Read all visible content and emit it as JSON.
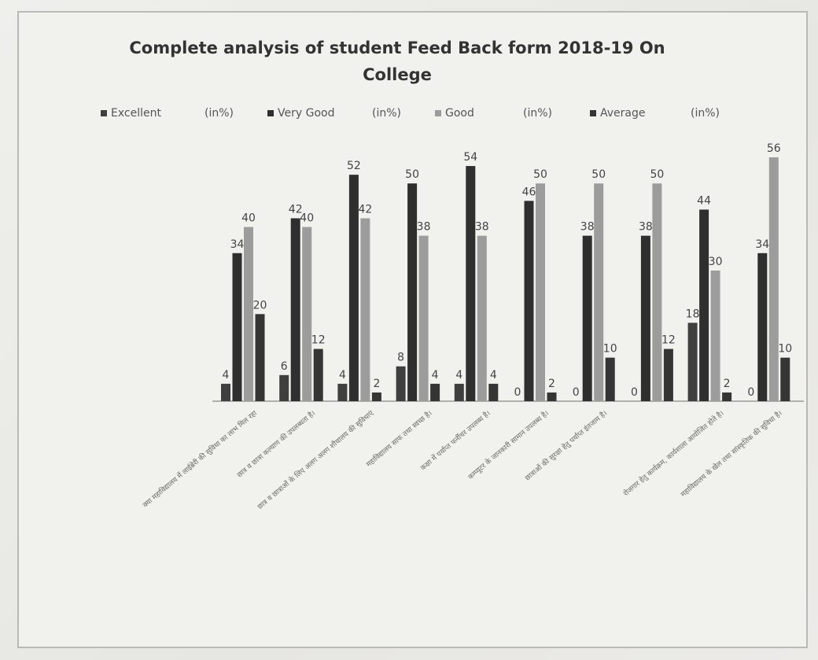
{
  "chart_data": {
    "type": "bar",
    "title": "Complete analysis of student Feed Back form 2018-19 On College",
    "title_lines": [
      "Complete analysis of student Feed Back form 2018-19 On",
      "College"
    ],
    "legend_position": "top",
    "grid": false,
    "ylim": [
      0,
      60
    ],
    "categories": [
      "क्या महाविद्यालय में लाईब्रेरी की सुविधा का लाभ मिल रहा",
      "छात्र व छात्रा कल्याण की उपलब्धता है।",
      "छात्र व छात्राओं के लिए अलग अलग शौचालय की सुविधाएं",
      "महाविद्यालय साफ तथा स्वच्छ है।",
      "कक्षा में पर्याप्त फर्नीचर उपलब्ध है।",
      "कम्प्यूटर के जानकारी सामान उपलब्ध है।",
      "छात्राओं की सुरक्षा हेतु पर्याप्त इंतजाम है।",
      "",
      "रोजगार हेतु कार्यक्रम, कार्यशाला आयोजित होते है।",
      "महाविद्यालय के खेल तथा सांस्कृतिक की सुविधा है।"
    ],
    "series": [
      {
        "name": "Excellent",
        "unit": "(in%)",
        "color": "#3f3f3f",
        "values": [
          4,
          6,
          4,
          8,
          4,
          0,
          0,
          0,
          18,
          0
        ]
      },
      {
        "name": "Very Good",
        "unit": "(in%)",
        "color": "#2f2f2f",
        "values": [
          34,
          42,
          52,
          50,
          54,
          46,
          38,
          38,
          44,
          34
        ]
      },
      {
        "name": "Good",
        "unit": "(in%)",
        "color": "#9c9c9c",
        "values": [
          40,
          40,
          42,
          38,
          38,
          50,
          50,
          50,
          30,
          56
        ]
      },
      {
        "name": "Average",
        "unit": "(in%)",
        "color": "#353535",
        "values": [
          20,
          12,
          2,
          4,
          4,
          2,
          10,
          12,
          2,
          10
        ]
      }
    ]
  }
}
